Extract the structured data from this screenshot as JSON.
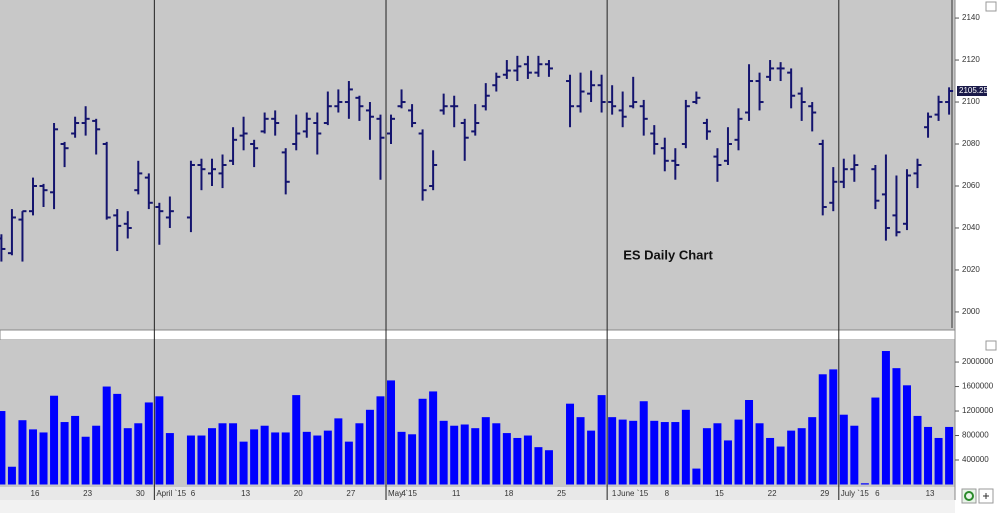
{
  "chart_data": [
    {
      "type": "ohlc",
      "annotation": "ES Daily Chart",
      "color": "#14146e",
      "categories": [
        null,
        null,
        null,
        "16",
        null,
        null,
        null,
        null,
        "23",
        null,
        null,
        null,
        null,
        "30",
        null,
        null,
        null,
        null,
        "6",
        null,
        null,
        null,
        null,
        "13",
        null,
        null,
        null,
        null,
        "20",
        null,
        null,
        null,
        null,
        "27",
        null,
        null,
        null,
        null,
        "4",
        null,
        null,
        null,
        null,
        "11",
        null,
        null,
        null,
        null,
        "18",
        null,
        null,
        null,
        null,
        "25",
        null,
        null,
        null,
        null,
        "1",
        null,
        null,
        null,
        null,
        "8",
        null,
        null,
        null,
        null,
        "15",
        null,
        null,
        null,
        null,
        "22",
        null,
        null,
        null,
        null,
        "29",
        null,
        null,
        null,
        null,
        "6",
        null,
        null,
        null,
        null,
        "13",
        null,
        null
      ],
      "month_labels": [
        null,
        null,
        null,
        null,
        null,
        null,
        null,
        null,
        null,
        null,
        null,
        null,
        null,
        null,
        null,
        "April `15",
        null,
        null,
        null,
        null,
        null,
        null,
        null,
        null,
        null,
        null,
        null,
        null,
        null,
        null,
        null,
        null,
        null,
        null,
        null,
        null,
        null,
        "May `15",
        null,
        null,
        null,
        null,
        null,
        null,
        null,
        null,
        null,
        null,
        null,
        null,
        null,
        null,
        null,
        null,
        null,
        null,
        null,
        null,
        "June `15",
        null,
        null,
        null,
        null,
        null,
        null,
        null,
        null,
        null,
        null,
        null,
        null,
        null,
        null,
        null,
        null,
        null,
        null,
        null,
        null,
        null,
        "July `15",
        null,
        null,
        null,
        null,
        null,
        null,
        null,
        null,
        null,
        null
      ],
      "open": [
        2035,
        2028,
        2044,
        2048,
        2060,
        2057,
        2080,
        2085,
        2090,
        2091,
        2080,
        2046,
        2042,
        2058,
        2064,
        2050,
        2045,
        null,
        2045,
        2070,
        2066,
        2066,
        2072,
        2084,
        2080,
        2086,
        2092,
        2076,
        2080,
        2086,
        2090,
        2090,
        2098,
        2100,
        2102,
        2096,
        2092,
        2085,
        2098,
        2096,
        2085,
        2060,
        2096,
        2098,
        2090,
        2086,
        2098,
        2108,
        2113,
        2115,
        2118,
        2114,
        2118,
        null,
        2110,
        2098,
        2104,
        2108,
        2100,
        2096,
        2098,
        2098,
        2085,
        2078,
        2072,
        2080,
        2100,
        2090,
        2074,
        2072,
        2082,
        2095,
        2110,
        2112,
        2116,
        2114,
        2104,
        2098,
        2080,
        2052,
        2062,
        2068,
        null,
        2068,
        2056,
        2046,
        2042,
        2066,
        2088,
        2094,
        2100
      ],
      "high": [
        2037,
        2049,
        2048,
        2064,
        2061,
        2090,
        2081,
        2093,
        2098,
        2092,
        2081,
        2049,
        2048,
        2072,
        2066,
        2052,
        2055,
        null,
        2072,
        2073,
        2073,
        2075,
        2088,
        2093,
        2082,
        2095,
        2096,
        2078,
        2094,
        2095,
        2095,
        2105,
        2106,
        2110,
        2103,
        2100,
        2094,
        2094,
        2106,
        2099,
        2087,
        2077,
        2104,
        2103,
        2092,
        2099,
        2109,
        2114,
        2120,
        2122,
        2122,
        2122,
        2120,
        null,
        2113,
        2114,
        2115,
        2113,
        2108,
        2105,
        2112,
        2101,
        2089,
        2083,
        2078,
        2101,
        2105,
        2092,
        2078,
        2088,
        2097,
        2118,
        2114,
        2120,
        2119,
        2116,
        2107,
        2100,
        2082,
        2069,
        2073,
        2075,
        null,
        2070,
        2075,
        2065,
        2068,
        2073,
        2095,
        2103,
        2107
      ],
      "low": [
        2024,
        2027,
        2024,
        2046,
        2050,
        2049,
        2069,
        2083,
        2084,
        2075,
        2044,
        2029,
        2035,
        2056,
        2049,
        2032,
        2040,
        null,
        2038,
        2058,
        2060,
        2059,
        2070,
        2077,
        2069,
        2085,
        2084,
        2056,
        2077,
        2083,
        2075,
        2089,
        2095,
        2092,
        2091,
        2082,
        2063,
        2080,
        2097,
        2088,
        2053,
        2058,
        2094,
        2088,
        2072,
        2084,
        2096,
        2105,
        2111,
        2110,
        2111,
        2112,
        2112,
        null,
        2088,
        2095,
        2100,
        2095,
        2094,
        2088,
        2097,
        2084,
        2075,
        2067,
        2063,
        2078,
        2099,
        2082,
        2062,
        2070,
        2077,
        2091,
        2096,
        2110,
        2110,
        2097,
        2091,
        2086,
        2046,
        2048,
        2059,
        2062,
        null,
        2049,
        2034,
        2036,
        2039,
        2059,
        2083,
        2091,
        2094
      ],
      "close": [
        2030,
        2045,
        2048,
        2060,
        2058,
        2087,
        2078,
        2090,
        2092,
        2087,
        2045,
        2041,
        2040,
        2066,
        2052,
        2048,
        2048,
        null,
        2070,
        2068,
        2068,
        2070,
        2082,
        2085,
        2078,
        2092,
        2090,
        2062,
        2085,
        2092,
        2085,
        2098,
        2100,
        2106,
        2098,
        2093,
        2083,
        2092,
        2100,
        2090,
        2058,
        2070,
        2098,
        2098,
        2083,
        2090,
        2103,
        2112,
        2115,
        2117,
        2114,
        2118,
        2116,
        null,
        2098,
        2105,
        2108,
        2100,
        2098,
        2093,
        2100,
        2092,
        2080,
        2072,
        2070,
        2098,
        2102,
        2086,
        2070,
        2080,
        2092,
        2110,
        2100,
        2116,
        2116,
        2103,
        2100,
        2095,
        2050,
        2062,
        2068,
        2070,
        null,
        2053,
        2040,
        2038,
        2065,
        2070,
        2093,
        2100,
        2105.25
      ],
      "ylim": [
        1991.4,
        2148.6
      ],
      "yticks": [
        2000,
        2020,
        2040,
        2060,
        2080,
        2100,
        2120,
        2140
      ]
    },
    {
      "type": "bar",
      "color": "#0000ff",
      "values": [
        1200000,
        290000,
        1050000,
        900000,
        850000,
        1450000,
        1020000,
        1120000,
        780000,
        960000,
        1600000,
        1480000,
        920000,
        1000000,
        1340000,
        1440000,
        840000,
        null,
        800000,
        800000,
        920000,
        1000000,
        1000000,
        700000,
        900000,
        960000,
        850000,
        850000,
        1460000,
        860000,
        800000,
        880000,
        1080000,
        700000,
        1000000,
        1220000,
        1440000,
        1700000,
        860000,
        820000,
        1400000,
        1520000,
        1040000,
        960000,
        980000,
        920000,
        1100000,
        1000000,
        840000,
        760000,
        800000,
        610000,
        560000,
        null,
        1320000,
        1100000,
        880000,
        1460000,
        1100000,
        1060000,
        1040000,
        1360000,
        1040000,
        1020000,
        1020000,
        1220000,
        260000,
        920000,
        1000000,
        720000,
        1060000,
        1380000,
        1000000,
        760000,
        620000,
        880000,
        920000,
        1100000,
        1800000,
        1880000,
        1140000,
        960000,
        20000,
        1420000,
        2180000,
        1900000,
        1620000,
        1120000,
        940000,
        760000,
        940000
      ],
      "ylim": [
        0,
        2360000
      ],
      "yticks": [
        400000,
        800000,
        1200000,
        1600000,
        2000000
      ]
    }
  ]
}
